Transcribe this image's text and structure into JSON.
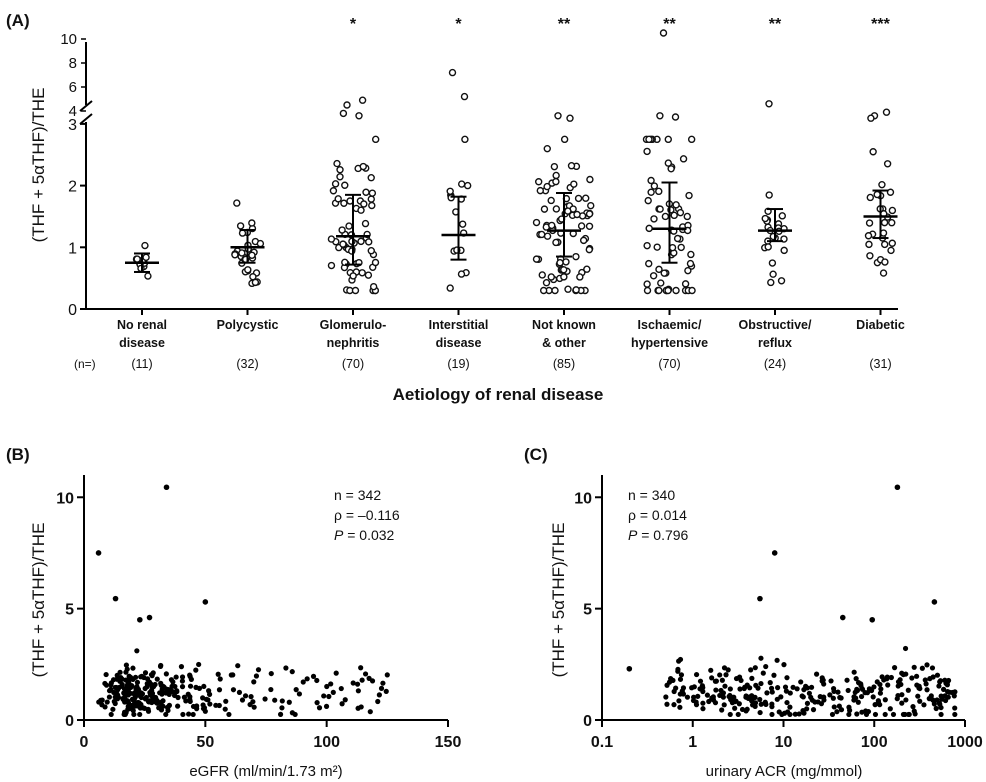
{
  "panel_labels": {
    "a": "(A)",
    "b": "(B)",
    "c": "(C)"
  },
  "ylabel": "(THF + 5αTHF)/THE",
  "chart_data": [
    {
      "id": "A",
      "type": "scatter",
      "title": "",
      "xlabel": "Aetiology of renal disease",
      "ylabel": "(THF + 5αTHF)/THE",
      "n_label": "(n=)",
      "categories": [
        {
          "l1": "No renal",
          "l2": "disease",
          "n": "(11)",
          "sig": "",
          "median": 0.75,
          "iqr": [
            0.6,
            0.9
          ]
        },
        {
          "l1": "Polycystic",
          "l2": "",
          "n": "(32)",
          "sig": "",
          "median": 1.0,
          "iqr": [
            0.75,
            1.28
          ]
        },
        {
          "l1": "Glomerulo-",
          "l2": "nephritis",
          "n": "(70)",
          "sig": "*",
          "median": 1.18,
          "iqr": [
            0.72,
            1.85
          ]
        },
        {
          "l1": "Interstitial",
          "l2": "disease",
          "n": "(19)",
          "sig": "*",
          "median": 1.2,
          "iqr": [
            0.8,
            1.82
          ]
        },
        {
          "l1": "Not known",
          "l2": "& other",
          "n": "(85)",
          "sig": "**",
          "median": 1.27,
          "iqr": [
            0.85,
            1.88
          ]
        },
        {
          "l1": "Ischaemic/",
          "l2": "hypertensive",
          "n": "(70)",
          "sig": "**",
          "median": 1.3,
          "iqr": [
            0.75,
            2.05
          ]
        },
        {
          "l1": "Obstructive/",
          "l2": "reflux",
          "n": "(24)",
          "sig": "**",
          "median": 1.27,
          "iqr": [
            1.1,
            1.62
          ]
        },
        {
          "l1": "Diabetic",
          "l2": "",
          "n": "(31)",
          "sig": "***",
          "median": 1.5,
          "iqr": [
            1.15,
            1.92
          ]
        }
      ],
      "y_lower_range": [
        0,
        3
      ],
      "y_lower_ticks": [
        "0",
        "1",
        "2",
        "3"
      ],
      "y_upper_range": [
        3,
        11
      ],
      "y_upper_ticks": [
        "4",
        "6",
        "8",
        "10"
      ],
      "broken_axis": true
    },
    {
      "id": "B",
      "type": "scatter",
      "xlabel": "eGFR (ml/min/1.73 m²)",
      "ylabel": "(THF + 5αTHF)/THE",
      "xlim": [
        0,
        150
      ],
      "ylim": [
        0,
        11
      ],
      "xticks": [
        "0",
        "50",
        "100",
        "150"
      ],
      "yticks": [
        "0",
        "5",
        "10"
      ],
      "stats": {
        "n": "n = 342",
        "rho": "ρ = –0.116",
        "p_label": "P",
        "p_value": " = 0.032"
      },
      "outliers": [
        [
          34,
          10.45
        ],
        [
          6,
          7.5
        ],
        [
          13,
          5.45
        ],
        [
          50,
          5.3
        ],
        [
          27,
          4.6
        ],
        [
          23,
          4.5
        ]
      ]
    },
    {
      "id": "C",
      "type": "scatter",
      "x_scale": "log",
      "xlabel": "urinary ACR (mg/mmol)",
      "ylabel": "(THF + 5αTHF)/THE",
      "xlim": [
        0.1,
        1000
      ],
      "ylim": [
        0,
        11
      ],
      "xticks": [
        "0.1",
        "1",
        "10",
        "100",
        "1000"
      ],
      "yticks": [
        "0",
        "5",
        "10"
      ],
      "stats": {
        "n": "n = 340",
        "rho": "ρ = 0.014",
        "p_label": "P",
        "p_value": " = 0.796"
      },
      "outliers": [
        [
          180,
          10.45
        ],
        [
          8,
          7.5
        ],
        [
          5.5,
          5.45
        ],
        [
          460,
          5.3
        ],
        [
          45,
          4.6
        ],
        [
          95,
          4.5
        ],
        [
          0.2,
          2.3
        ]
      ]
    }
  ]
}
